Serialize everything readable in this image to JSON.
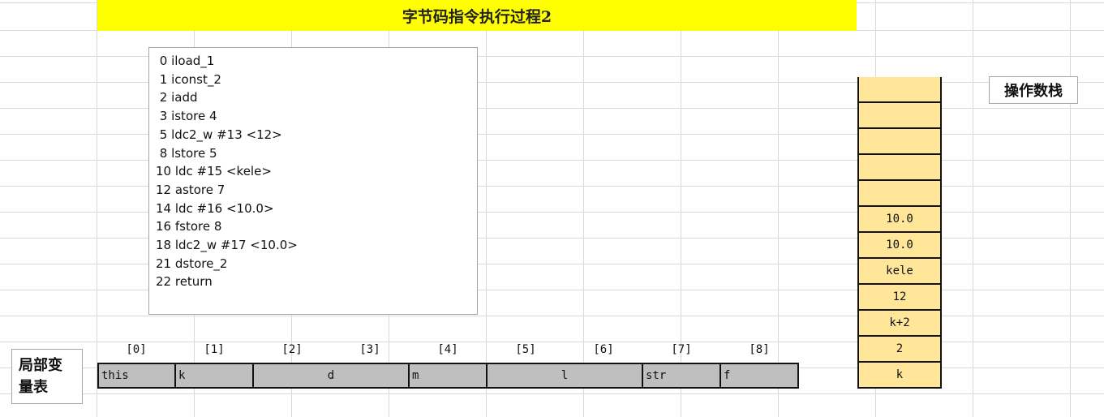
{
  "title": "字节码指令执行过程2",
  "bytecode": [
    " 0 iload_1",
    " 1 iconst_2",
    " 2 iadd",
    " 3 istore 4",
    " 5 ldc2_w #13 <12>",
    " 8 lstore 5",
    "10 ldc #15 <kele>",
    "12 astore 7",
    "14 ldc #16 <10.0>",
    "16 fstore 8",
    "18 ldc2_w #17 <10.0>",
    "21 dstore_2",
    "22 return"
  ],
  "operand_stack": {
    "label": "操作数栈",
    "cells": [
      "",
      "",
      "",
      "",
      "",
      "10.0",
      "10.0",
      "kele",
      "12",
      "k+2",
      "2",
      "k"
    ]
  },
  "local_vars": {
    "label_line1": "局部变",
    "label_line2": "量表",
    "indices": [
      "[0]",
      "[1]",
      "[2]",
      "[3]",
      "[4]",
      "[5]",
      "[6]",
      "[7]",
      "[8]"
    ],
    "slots": [
      "this",
      "k",
      "d",
      "m",
      "l",
      "str",
      "f"
    ]
  },
  "colors": {
    "title_bg": "#ffff00",
    "stack_bg": "#ffe699",
    "slot_bg": "#bfbfbf",
    "gridline": "#d9d9d9"
  }
}
